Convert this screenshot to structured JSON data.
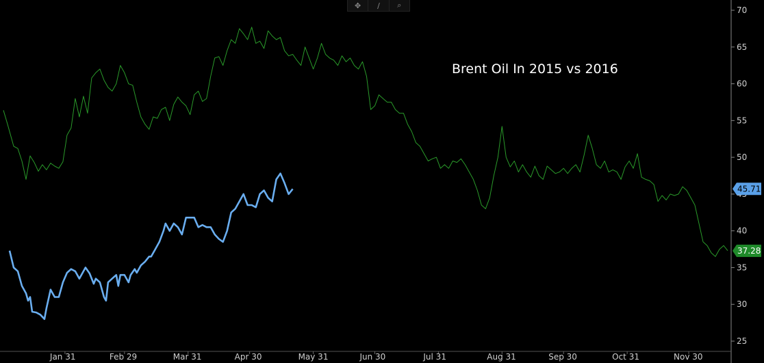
{
  "toolbar": {
    "items": [
      {
        "name": "crosshair-icon",
        "glyph": "✥"
      },
      {
        "name": "draw-line-icon",
        "glyph": "∕"
      },
      {
        "name": "zoom-icon",
        "glyph": "⌕"
      }
    ]
  },
  "chart_data": {
    "type": "line",
    "title": "Brent Oil In 2015 vs 2016",
    "xlabel": "",
    "ylabel": "",
    "x_tick_labels": [
      "Jan 31",
      "Feb 29",
      "Mar 31",
      "Apr 30",
      "May 31",
      "Jun 30",
      "Jul 31",
      "Aug 31",
      "Sep 30",
      "Oct 31",
      "Nov 30"
    ],
    "x_tick_days": [
      31,
      60,
      91,
      121,
      152,
      182,
      213,
      244,
      274,
      305,
      335
    ],
    "xlim": [
      1,
      354
    ],
    "ylim": [
      25,
      70
    ],
    "y_ticks": [
      25,
      30,
      35,
      40,
      45,
      50,
      55,
      60,
      65,
      70
    ],
    "grid": false,
    "legend": "none",
    "series": [
      {
        "color": "#2a9a2a",
        "last_value": "37.28",
        "badge_color": "#1f8a2a",
        "points": [
          [
            1,
            56.4
          ],
          [
            3,
            54.5
          ],
          [
            6,
            51.5
          ],
          [
            8,
            51.2
          ],
          [
            10,
            49.5
          ],
          [
            12,
            47.0
          ],
          [
            14,
            50.2
          ],
          [
            16,
            49.3
          ],
          [
            18,
            48.1
          ],
          [
            20,
            49.0
          ],
          [
            22,
            48.3
          ],
          [
            24,
            49.2
          ],
          [
            26,
            48.8
          ],
          [
            28,
            48.5
          ],
          [
            30,
            49.4
          ],
          [
            32,
            53.0
          ],
          [
            34,
            54.0
          ],
          [
            36,
            58.0
          ],
          [
            38,
            55.5
          ],
          [
            40,
            58.3
          ],
          [
            42,
            56.0
          ],
          [
            44,
            60.8
          ],
          [
            46,
            61.5
          ],
          [
            48,
            62.0
          ],
          [
            50,
            60.5
          ],
          [
            52,
            59.5
          ],
          [
            54,
            59.0
          ],
          [
            56,
            60.0
          ],
          [
            58,
            62.5
          ],
          [
            60,
            61.5
          ],
          [
            62,
            60.0
          ],
          [
            64,
            59.8
          ],
          [
            66,
            57.5
          ],
          [
            68,
            55.5
          ],
          [
            70,
            54.5
          ],
          [
            72,
            53.8
          ],
          [
            74,
            55.5
          ],
          [
            76,
            55.3
          ],
          [
            78,
            56.5
          ],
          [
            80,
            56.8
          ],
          [
            82,
            55.0
          ],
          [
            84,
            57.2
          ],
          [
            86,
            58.2
          ],
          [
            88,
            57.5
          ],
          [
            90,
            57.0
          ],
          [
            92,
            55.8
          ],
          [
            94,
            58.5
          ],
          [
            96,
            59.0
          ],
          [
            98,
            57.6
          ],
          [
            100,
            58.0
          ],
          [
            102,
            61.0
          ],
          [
            104,
            63.5
          ],
          [
            106,
            63.7
          ],
          [
            108,
            62.5
          ],
          [
            110,
            64.5
          ],
          [
            112,
            66.0
          ],
          [
            114,
            65.5
          ],
          [
            116,
            67.5
          ],
          [
            118,
            66.8
          ],
          [
            120,
            66.0
          ],
          [
            122,
            67.7
          ],
          [
            124,
            65.5
          ],
          [
            126,
            65.8
          ],
          [
            128,
            64.8
          ],
          [
            130,
            67.2
          ],
          [
            132,
            66.5
          ],
          [
            134,
            66.0
          ],
          [
            136,
            66.3
          ],
          [
            138,
            64.5
          ],
          [
            140,
            63.8
          ],
          [
            142,
            64.0
          ],
          [
            144,
            63.2
          ],
          [
            146,
            62.5
          ],
          [
            148,
            65.0
          ],
          [
            150,
            63.5
          ],
          [
            152,
            62.0
          ],
          [
            154,
            63.5
          ],
          [
            156,
            65.5
          ],
          [
            158,
            64.0
          ],
          [
            160,
            63.5
          ],
          [
            162,
            63.2
          ],
          [
            164,
            62.5
          ],
          [
            166,
            63.8
          ],
          [
            168,
            63.0
          ],
          [
            170,
            63.5
          ],
          [
            172,
            62.5
          ],
          [
            174,
            62.0
          ],
          [
            176,
            63.0
          ],
          [
            178,
            61.0
          ],
          [
            180,
            56.5
          ],
          [
            182,
            57.0
          ],
          [
            184,
            58.5
          ],
          [
            186,
            58.0
          ],
          [
            188,
            57.5
          ],
          [
            190,
            57.5
          ],
          [
            192,
            56.5
          ],
          [
            194,
            56.0
          ],
          [
            196,
            56.0
          ],
          [
            198,
            54.5
          ],
          [
            200,
            53.5
          ],
          [
            202,
            52.0
          ],
          [
            204,
            51.5
          ],
          [
            206,
            50.5
          ],
          [
            208,
            49.5
          ],
          [
            210,
            49.8
          ],
          [
            212,
            50.0
          ],
          [
            214,
            48.5
          ],
          [
            216,
            49.0
          ],
          [
            218,
            48.5
          ],
          [
            220,
            49.5
          ],
          [
            222,
            49.3
          ],
          [
            224,
            49.8
          ],
          [
            226,
            49.0
          ],
          [
            228,
            48.0
          ],
          [
            230,
            47.0
          ],
          [
            232,
            45.5
          ],
          [
            234,
            43.5
          ],
          [
            236,
            43.0
          ],
          [
            238,
            44.5
          ],
          [
            240,
            47.5
          ],
          [
            242,
            50.0
          ],
          [
            244,
            54.2
          ],
          [
            246,
            50.0
          ],
          [
            248,
            48.7
          ],
          [
            250,
            49.5
          ],
          [
            252,
            48.0
          ],
          [
            254,
            49.0
          ],
          [
            256,
            48.0
          ],
          [
            258,
            47.3
          ],
          [
            260,
            48.8
          ],
          [
            262,
            47.5
          ],
          [
            264,
            47.0
          ],
          [
            266,
            48.8
          ],
          [
            268,
            48.3
          ],
          [
            270,
            47.8
          ],
          [
            272,
            48.0
          ],
          [
            274,
            48.5
          ],
          [
            276,
            47.8
          ],
          [
            278,
            48.5
          ],
          [
            280,
            49.0
          ],
          [
            282,
            48.0
          ],
          [
            284,
            50.3
          ],
          [
            286,
            53.0
          ],
          [
            288,
            51.2
          ],
          [
            290,
            49.0
          ],
          [
            292,
            48.5
          ],
          [
            294,
            49.5
          ],
          [
            296,
            48.0
          ],
          [
            298,
            48.3
          ],
          [
            300,
            48.0
          ],
          [
            302,
            47.0
          ],
          [
            304,
            48.7
          ],
          [
            306,
            49.5
          ],
          [
            308,
            48.5
          ],
          [
            310,
            50.5
          ],
          [
            312,
            47.3
          ],
          [
            314,
            47.0
          ],
          [
            316,
            46.8
          ],
          [
            318,
            46.3
          ],
          [
            320,
            44.0
          ],
          [
            322,
            44.8
          ],
          [
            324,
            44.2
          ],
          [
            326,
            45.0
          ],
          [
            328,
            44.8
          ],
          [
            330,
            45.0
          ],
          [
            332,
            46.0
          ],
          [
            334,
            45.5
          ],
          [
            336,
            44.5
          ],
          [
            338,
            43.5
          ],
          [
            340,
            41.0
          ],
          [
            342,
            38.5
          ],
          [
            344,
            38.0
          ],
          [
            346,
            37.0
          ],
          [
            348,
            36.5
          ],
          [
            350,
            37.5
          ],
          [
            352,
            38.0
          ],
          [
            354,
            37.3
          ]
        ]
      },
      {
        "color": "#6aaef0",
        "last_value": "45.71",
        "badge_color": "#5aa0e8",
        "points": [
          [
            4,
            37.3
          ],
          [
            6,
            35.0
          ],
          [
            8,
            34.5
          ],
          [
            10,
            32.5
          ],
          [
            12,
            31.5
          ],
          [
            13,
            30.5
          ],
          [
            14,
            31.0
          ],
          [
            15,
            29.0
          ],
          [
            17,
            28.9
          ],
          [
            19,
            28.6
          ],
          [
            21,
            28.0
          ],
          [
            22,
            29.5
          ],
          [
            24,
            32.0
          ],
          [
            26,
            31.0
          ],
          [
            28,
            31.0
          ],
          [
            30,
            33.0
          ],
          [
            32,
            34.3
          ],
          [
            34,
            34.8
          ],
          [
            36,
            34.5
          ],
          [
            38,
            33.5
          ],
          [
            39,
            34.0
          ],
          [
            41,
            35.0
          ],
          [
            43,
            34.2
          ],
          [
            45,
            32.8
          ],
          [
            46,
            33.5
          ],
          [
            48,
            33.0
          ],
          [
            50,
            31.0
          ],
          [
            51,
            30.5
          ],
          [
            52,
            33.0
          ],
          [
            54,
            33.5
          ],
          [
            56,
            34.0
          ],
          [
            57,
            32.5
          ],
          [
            58,
            34.0
          ],
          [
            60,
            34.0
          ],
          [
            62,
            33.0
          ],
          [
            63,
            34.0
          ],
          [
            65,
            34.8
          ],
          [
            66,
            34.3
          ],
          [
            68,
            35.3
          ],
          [
            70,
            35.8
          ],
          [
            72,
            36.5
          ],
          [
            73,
            36.5
          ],
          [
            75,
            37.5
          ],
          [
            77,
            38.5
          ],
          [
            79,
            40.0
          ],
          [
            80,
            41.0
          ],
          [
            82,
            40.0
          ],
          [
            84,
            41.0
          ],
          [
            86,
            40.5
          ],
          [
            88,
            39.5
          ],
          [
            90,
            41.8
          ],
          [
            92,
            41.8
          ],
          [
            94,
            41.8
          ],
          [
            96,
            40.5
          ],
          [
            98,
            40.8
          ],
          [
            100,
            40.5
          ],
          [
            102,
            40.5
          ],
          [
            104,
            39.5
          ],
          [
            106,
            38.9
          ],
          [
            108,
            38.5
          ],
          [
            110,
            40.0
          ],
          [
            112,
            42.5
          ],
          [
            114,
            43.0
          ],
          [
            116,
            44.0
          ],
          [
            118,
            45.0
          ],
          [
            120,
            43.5
          ],
          [
            122,
            43.5
          ],
          [
            124,
            43.2
          ],
          [
            126,
            45.0
          ],
          [
            128,
            45.5
          ],
          [
            130,
            44.5
          ],
          [
            132,
            44.0
          ],
          [
            134,
            47.0
          ],
          [
            136,
            47.8
          ],
          [
            138,
            46.5
          ],
          [
            140,
            45.0
          ],
          [
            142,
            45.7
          ]
        ]
      }
    ]
  }
}
